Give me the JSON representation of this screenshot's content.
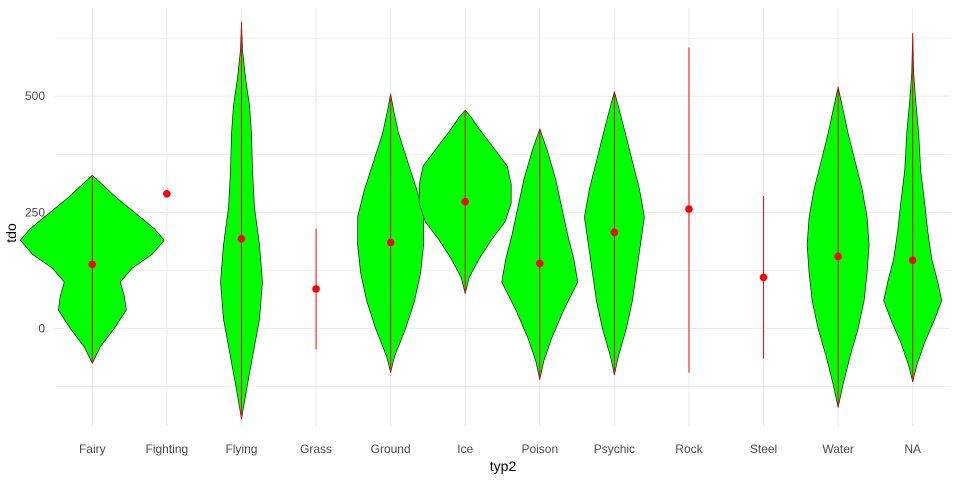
{
  "chart_data": {
    "type": "violin",
    "xlabel": "typ2",
    "ylabel": "tdo",
    "ylim": [
      -210,
      690
    ],
    "yticks": [
      0,
      250,
      500
    ],
    "grid": true,
    "categories": [
      "Fairy",
      "Fighting",
      "Flying",
      "Grass",
      "Ground",
      "Ice",
      "Poison",
      "Psychic",
      "Rock",
      "Steel",
      "Water",
      "NA"
    ],
    "colors": {
      "violin_fill": "#00ff00",
      "violin_stroke": "#1a1a1a",
      "summary": "#ff0000",
      "grid": "#ebebeb"
    },
    "groups": [
      {
        "name": "Fairy",
        "mean": 138,
        "range": [
          -75,
          330
        ],
        "violin": [
          [
            -75,
            0
          ],
          [
            -40,
            8
          ],
          [
            0,
            22
          ],
          [
            40,
            34
          ],
          [
            70,
            32
          ],
          [
            100,
            28
          ],
          [
            130,
            40
          ],
          [
            160,
            60
          ],
          [
            190,
            72
          ],
          [
            215,
            62
          ],
          [
            245,
            45
          ],
          [
            280,
            25
          ],
          [
            310,
            10
          ],
          [
            330,
            0
          ]
        ]
      },
      {
        "name": "Fighting",
        "mean": 290,
        "range": [
          290,
          290
        ],
        "violin": []
      },
      {
        "name": "Flying",
        "mean": 193,
        "range": [
          -195,
          660
        ],
        "violin": [
          [
            -195,
            0
          ],
          [
            -120,
            6
          ],
          [
            -50,
            12
          ],
          [
            20,
            18
          ],
          [
            100,
            21
          ],
          [
            180,
            18
          ],
          [
            260,
            13
          ],
          [
            340,
            11
          ],
          [
            420,
            10
          ],
          [
            480,
            8
          ],
          [
            540,
            4
          ],
          [
            600,
            1
          ],
          [
            660,
            0
          ]
        ]
      },
      {
        "name": "Grass",
        "mean": 85,
        "range": [
          -45,
          215
        ],
        "violin": []
      },
      {
        "name": "Ground",
        "mean": 185,
        "range": [
          -95,
          505
        ],
        "violin": [
          [
            -95,
            0
          ],
          [
            -60,
            4
          ],
          [
            0,
            15
          ],
          [
            60,
            24
          ],
          [
            120,
            30
          ],
          [
            180,
            33
          ],
          [
            240,
            33
          ],
          [
            300,
            26
          ],
          [
            360,
            17
          ],
          [
            420,
            8
          ],
          [
            470,
            3
          ],
          [
            505,
            0
          ]
        ]
      },
      {
        "name": "Ice",
        "mean": 273,
        "range": [
          75,
          470
        ],
        "violin": [
          [
            75,
            0
          ],
          [
            110,
            4
          ],
          [
            150,
            14
          ],
          [
            190,
            26
          ],
          [
            230,
            40
          ],
          [
            270,
            46
          ],
          [
            310,
            46
          ],
          [
            350,
            42
          ],
          [
            390,
            28
          ],
          [
            430,
            14
          ],
          [
            455,
            6
          ],
          [
            470,
            0
          ]
        ]
      },
      {
        "name": "Poison",
        "mean": 140,
        "range": [
          -110,
          430
        ],
        "violin": [
          [
            -110,
            0
          ],
          [
            -70,
            4
          ],
          [
            -20,
            12
          ],
          [
            40,
            24
          ],
          [
            100,
            38
          ],
          [
            150,
            34
          ],
          [
            200,
            28
          ],
          [
            260,
            22
          ],
          [
            320,
            16
          ],
          [
            380,
            8
          ],
          [
            430,
            0
          ]
        ]
      },
      {
        "name": "Psychic",
        "mean": 207,
        "range": [
          -100,
          510
        ],
        "violin": [
          [
            -100,
            0
          ],
          [
            -60,
            4
          ],
          [
            0,
            12
          ],
          [
            60,
            18
          ],
          [
            120,
            22
          ],
          [
            180,
            26
          ],
          [
            240,
            30
          ],
          [
            300,
            25
          ],
          [
            360,
            18
          ],
          [
            420,
            11
          ],
          [
            470,
            5
          ],
          [
            510,
            0
          ]
        ]
      },
      {
        "name": "Rock",
        "mean": 257,
        "range": [
          -95,
          605
        ],
        "violin": []
      },
      {
        "name": "Steel",
        "mean": 110,
        "range": [
          -65,
          285
        ],
        "violin": []
      },
      {
        "name": "Water",
        "mean": 155,
        "range": [
          -170,
          520
        ],
        "violin": [
          [
            -170,
            0
          ],
          [
            -120,
            5
          ],
          [
            -60,
            12
          ],
          [
            0,
            20
          ],
          [
            60,
            26
          ],
          [
            120,
            29
          ],
          [
            180,
            31
          ],
          [
            240,
            29
          ],
          [
            300,
            24
          ],
          [
            360,
            17
          ],
          [
            420,
            10
          ],
          [
            480,
            4
          ],
          [
            520,
            0
          ]
        ]
      },
      {
        "name": "NA",
        "mean": 147,
        "range": [
          -115,
          635
        ],
        "violin": [
          [
            -115,
            0
          ],
          [
            -80,
            4
          ],
          [
            -30,
            12
          ],
          [
            20,
            22
          ],
          [
            60,
            29
          ],
          [
            100,
            25
          ],
          [
            150,
            19
          ],
          [
            210,
            15
          ],
          [
            270,
            12
          ],
          [
            340,
            8
          ],
          [
            420,
            6
          ],
          [
            490,
            3
          ],
          [
            550,
            1
          ],
          [
            635,
            0
          ]
        ]
      }
    ]
  }
}
